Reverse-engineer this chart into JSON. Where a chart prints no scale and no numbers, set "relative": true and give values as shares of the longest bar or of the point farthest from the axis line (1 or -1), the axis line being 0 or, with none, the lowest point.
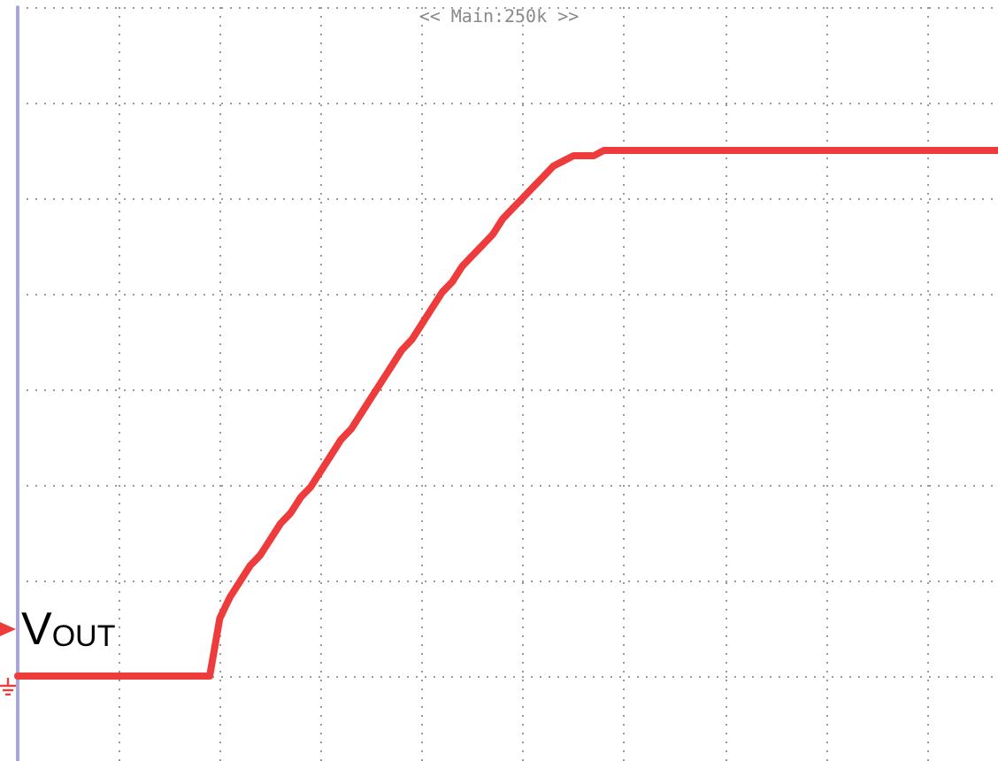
{
  "chart_data": {
    "type": "line",
    "title": "<< Main:250k >>",
    "categories": [
      null,
      null,
      null,
      null,
      null,
      null,
      null,
      null,
      null,
      null,
      null,
      null,
      null,
      null,
      null,
      null,
      null,
      null,
      null,
      null,
      null,
      null,
      null,
      null,
      null,
      null,
      null,
      null,
      null,
      null,
      null,
      null,
      null,
      null,
      null,
      null,
      null,
      null,
      null,
      null,
      null,
      null,
      null,
      null,
      null,
      null,
      null,
      null,
      null,
      null,
      null,
      null,
      null,
      null,
      null,
      null,
      null,
      null,
      null,
      null,
      null,
      null,
      null,
      null,
      null,
      null,
      null,
      null,
      null,
      null,
      null,
      null,
      null,
      null,
      null,
      null,
      null,
      null,
      null,
      null,
      null,
      null,
      null,
      null,
      null,
      null,
      null,
      null,
      null,
      null,
      null,
      null,
      null,
      null,
      null,
      null,
      null,
      null
    ],
    "series": [
      {
        "name": "V$_{OUT}$",
        "color": "#ee3b3b",
        "values": [
          0,
          0,
          0,
          0,
          0,
          0,
          0,
          0,
          0,
          0,
          0,
          0,
          0,
          0,
          0,
          0,
          0,
          0,
          0,
          0,
          0.11,
          0.15,
          0.18,
          0.21,
          0.23,
          0.26,
          0.29,
          0.31,
          0.34,
          0.36,
          0.39,
          0.42,
          0.45,
          0.47,
          0.5,
          0.53,
          0.56,
          0.59,
          0.62,
          0.64,
          0.67,
          0.7,
          0.73,
          0.75,
          0.78,
          0.8,
          0.82,
          0.84,
          0.87,
          0.89,
          0.91,
          0.93,
          0.95,
          0.97,
          0.98,
          0.99,
          0.99,
          0.99,
          1,
          1,
          1,
          1,
          1,
          1,
          1,
          1,
          1,
          1,
          1,
          1,
          1,
          1,
          1,
          1,
          1,
          1,
          1,
          1,
          1,
          1,
          1,
          1,
          1,
          1,
          1,
          1,
          1,
          1,
          1,
          1,
          1,
          1,
          1,
          1,
          1,
          1,
          1,
          1
        ]
      }
    ],
    "relative": true,
    "grid": true
  }
}
